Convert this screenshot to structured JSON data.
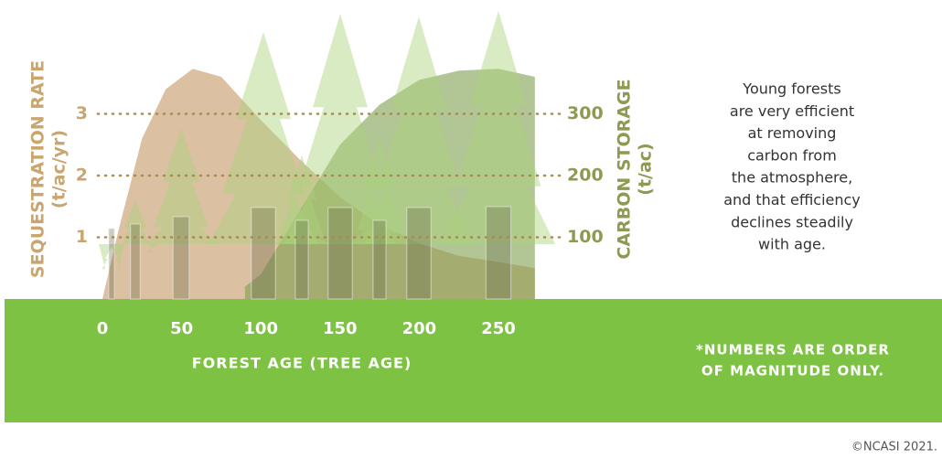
{
  "chart_data": {
    "type": "area",
    "y_label": "SEQUESTRATION RATE",
    "y_unit": "(t/ac/yr)",
    "y2_label": "CARBON STORAGE",
    "y2_unit": "(t/ac)",
    "x_label": "FOREST AGE (TREE AGE)",
    "xlim": [
      0,
      250
    ],
    "xticks": [
      0,
      50,
      100,
      150,
      200,
      250
    ],
    "ylim": [
      0,
      4
    ],
    "yticks": [
      1,
      2,
      3
    ],
    "y2lim": [
      0,
      400
    ],
    "y2ticks": [
      100,
      200,
      300
    ],
    "series": [
      {
        "name": "Sequestration rate",
        "color": "#c49664",
        "x": [
          0,
          10,
          25,
          40,
          57,
          75,
          100,
          125,
          150,
          175,
          200,
          225,
          250,
          273
        ],
        "values": [
          0,
          1.1,
          2.6,
          3.4,
          3.73,
          3.6,
          2.9,
          2.25,
          1.65,
          1.2,
          0.9,
          0.7,
          0.6,
          0.5
        ]
      },
      {
        "name": "Carbon storage",
        "color": "#7e9e4e",
        "axis": "y2",
        "x": [
          90,
          100,
          125,
          150,
          175,
          200,
          225,
          250,
          273
        ],
        "values": [
          20,
          40,
          145,
          250,
          315,
          355,
          370,
          373,
          360
        ]
      }
    ],
    "annotation_lines": [
      "Young forests",
      "are very efficient",
      "at removing",
      "carbon from",
      "the atmosphere,",
      "and that efficiency",
      "declines steadily",
      "with age."
    ],
    "footnote_lines": [
      "*NUMBERS ARE ORDER",
      "OF MAGNITUDE ONLY."
    ],
    "copyright": "©NCASI 2021."
  }
}
